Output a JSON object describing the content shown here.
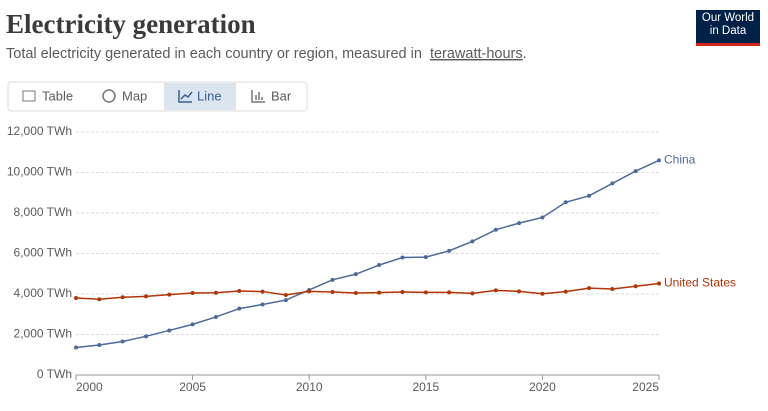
{
  "header": {
    "logo": "Our World in Data"
  },
  "tabs": [
    "Table",
    "Map",
    "Line",
    "Bar"
  ],
  "chart_data": {
    "type": "line",
    "title": "Electricity generation",
    "subtitle": "Total electricity generated in each country or region, measured in",
    "subtitle_link": "terawatt-hours",
    "subtitle_end": ".",
    "x": [
      2000,
      2001,
      2002,
      2003,
      2004,
      2005,
      2006,
      2007,
      2008,
      2009,
      2010,
      2011,
      2012,
      2013,
      2014,
      2015,
      2016,
      2017,
      2018,
      2019,
      2020,
      2021,
      2022,
      2023,
      2024,
      2025
    ],
    "series": [
      {
        "name": "China",
        "color": "#4c6a9c",
        "values": [
          1356,
          1480,
          1654,
          1910,
          2200,
          2500,
          2866,
          3280,
          3480,
          3700,
          4200,
          4700,
          4980,
          5430,
          5800,
          5820,
          6130,
          6600,
          7170,
          7500,
          7780,
          8530,
          8850,
          9460,
          10070,
          10600
        ]
      },
      {
        "name": "United States",
        "color": "#b13507",
        "values": [
          3800,
          3740,
          3840,
          3880,
          3970,
          4050,
          4060,
          4150,
          4120,
          3950,
          4130,
          4100,
          4050,
          4070,
          4100,
          4080,
          4080,
          4030,
          4180,
          4130,
          4010,
          4120,
          4290,
          4250,
          4380,
          4520
        ]
      }
    ],
    "xlim": [
      2000,
      2025
    ],
    "xticks": [
      2000,
      2005,
      2010,
      2015,
      2020,
      2025
    ],
    "ylim": [
      0,
      12000
    ],
    "yticks": [
      {
        "value": 0,
        "label": "0 TWh"
      },
      {
        "value": 2000,
        "label": "2,000 TWh"
      },
      {
        "value": 4000,
        "label": "4,000 TWh"
      },
      {
        "value": 6000,
        "label": "6,000 TWh"
      },
      {
        "value": 8000,
        "label": "8,000 TWh"
      },
      {
        "value": 10000,
        "label": "10,000 TWh"
      },
      {
        "value": 12000,
        "label": "12,000 TWh"
      }
    ],
    "grid": true
  }
}
